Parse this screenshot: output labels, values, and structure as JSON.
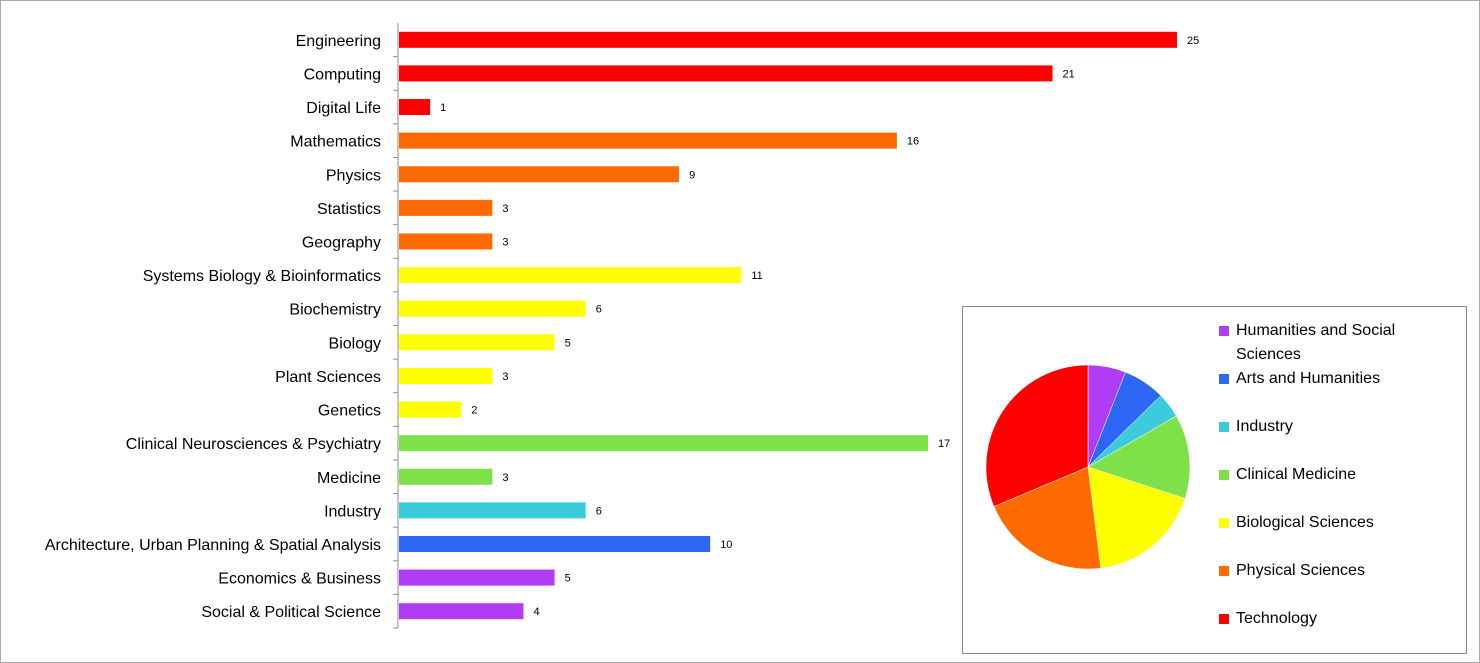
{
  "chart_data": [
    {
      "type": "bar",
      "orientation": "horizontal",
      "categories": [
        "Engineering",
        "Computing",
        "Digital Life",
        "Mathematics",
        "Physics",
        "Statistics",
        "Geography",
        "Systems Biology & Bioinformatics",
        "Biochemistry",
        "Biology",
        "Plant Sciences",
        "Genetics",
        "Clinical Neurosciences & Psychiatry",
        "Medicine",
        "Industry",
        "Architecture, Urban Planning & Spatial Analysis",
        "Economics & Business",
        "Social & Political Science"
      ],
      "values": [
        25,
        21,
        1,
        16,
        9,
        3,
        3,
        11,
        6,
        5,
        3,
        2,
        17,
        3,
        6,
        10,
        5,
        4
      ],
      "groups": [
        "Technology",
        "Technology",
        "Technology",
        "Physical Sciences",
        "Physical Sciences",
        "Physical Sciences",
        "Physical Sciences",
        "Biological Sciences",
        "Biological Sciences",
        "Biological Sciences",
        "Biological Sciences",
        "Biological Sciences",
        "Clinical Medicine",
        "Clinical Medicine",
        "Industry",
        "Arts and Humanities",
        "Humanities and Social Sciences",
        "Humanities and Social Sciences"
      ],
      "data_labels": [
        "25",
        "21",
        "1",
        "16",
        "9",
        "3",
        "3",
        "11",
        "6",
        "5",
        "3",
        "2",
        "17",
        "3",
        "6",
        "10",
        "5",
        "4"
      ],
      "xlim": [
        0,
        25
      ],
      "grid": false,
      "title": "",
      "xlabel": "",
      "ylabel": ""
    },
    {
      "type": "pie",
      "labels": [
        "Humanities and Social Sciences",
        "Arts and Humanities",
        "Industry",
        "Clinical Medicine",
        "Biological Sciences",
        "Physical Sciences",
        "Technology"
      ],
      "values": [
        9,
        10,
        6,
        20,
        27,
        31,
        47
      ],
      "colors": [
        "#b03cf5",
        "#2f67f5",
        "#3ccbdc",
        "#7fe14a",
        "#ffff00",
        "#ff6a00",
        "#ff0000"
      ],
      "legend": "right",
      "start": "top",
      "direction": "clockwise"
    }
  ],
  "colors": {
    "Technology": "#ff0000",
    "Physical Sciences": "#ff6a00",
    "Biological Sciences": "#ffff00",
    "Clinical Medicine": "#7fe14a",
    "Industry": "#3ccbdc",
    "Arts and Humanities": "#2f67f5",
    "Humanities and Social Sciences": "#b03cf5"
  }
}
